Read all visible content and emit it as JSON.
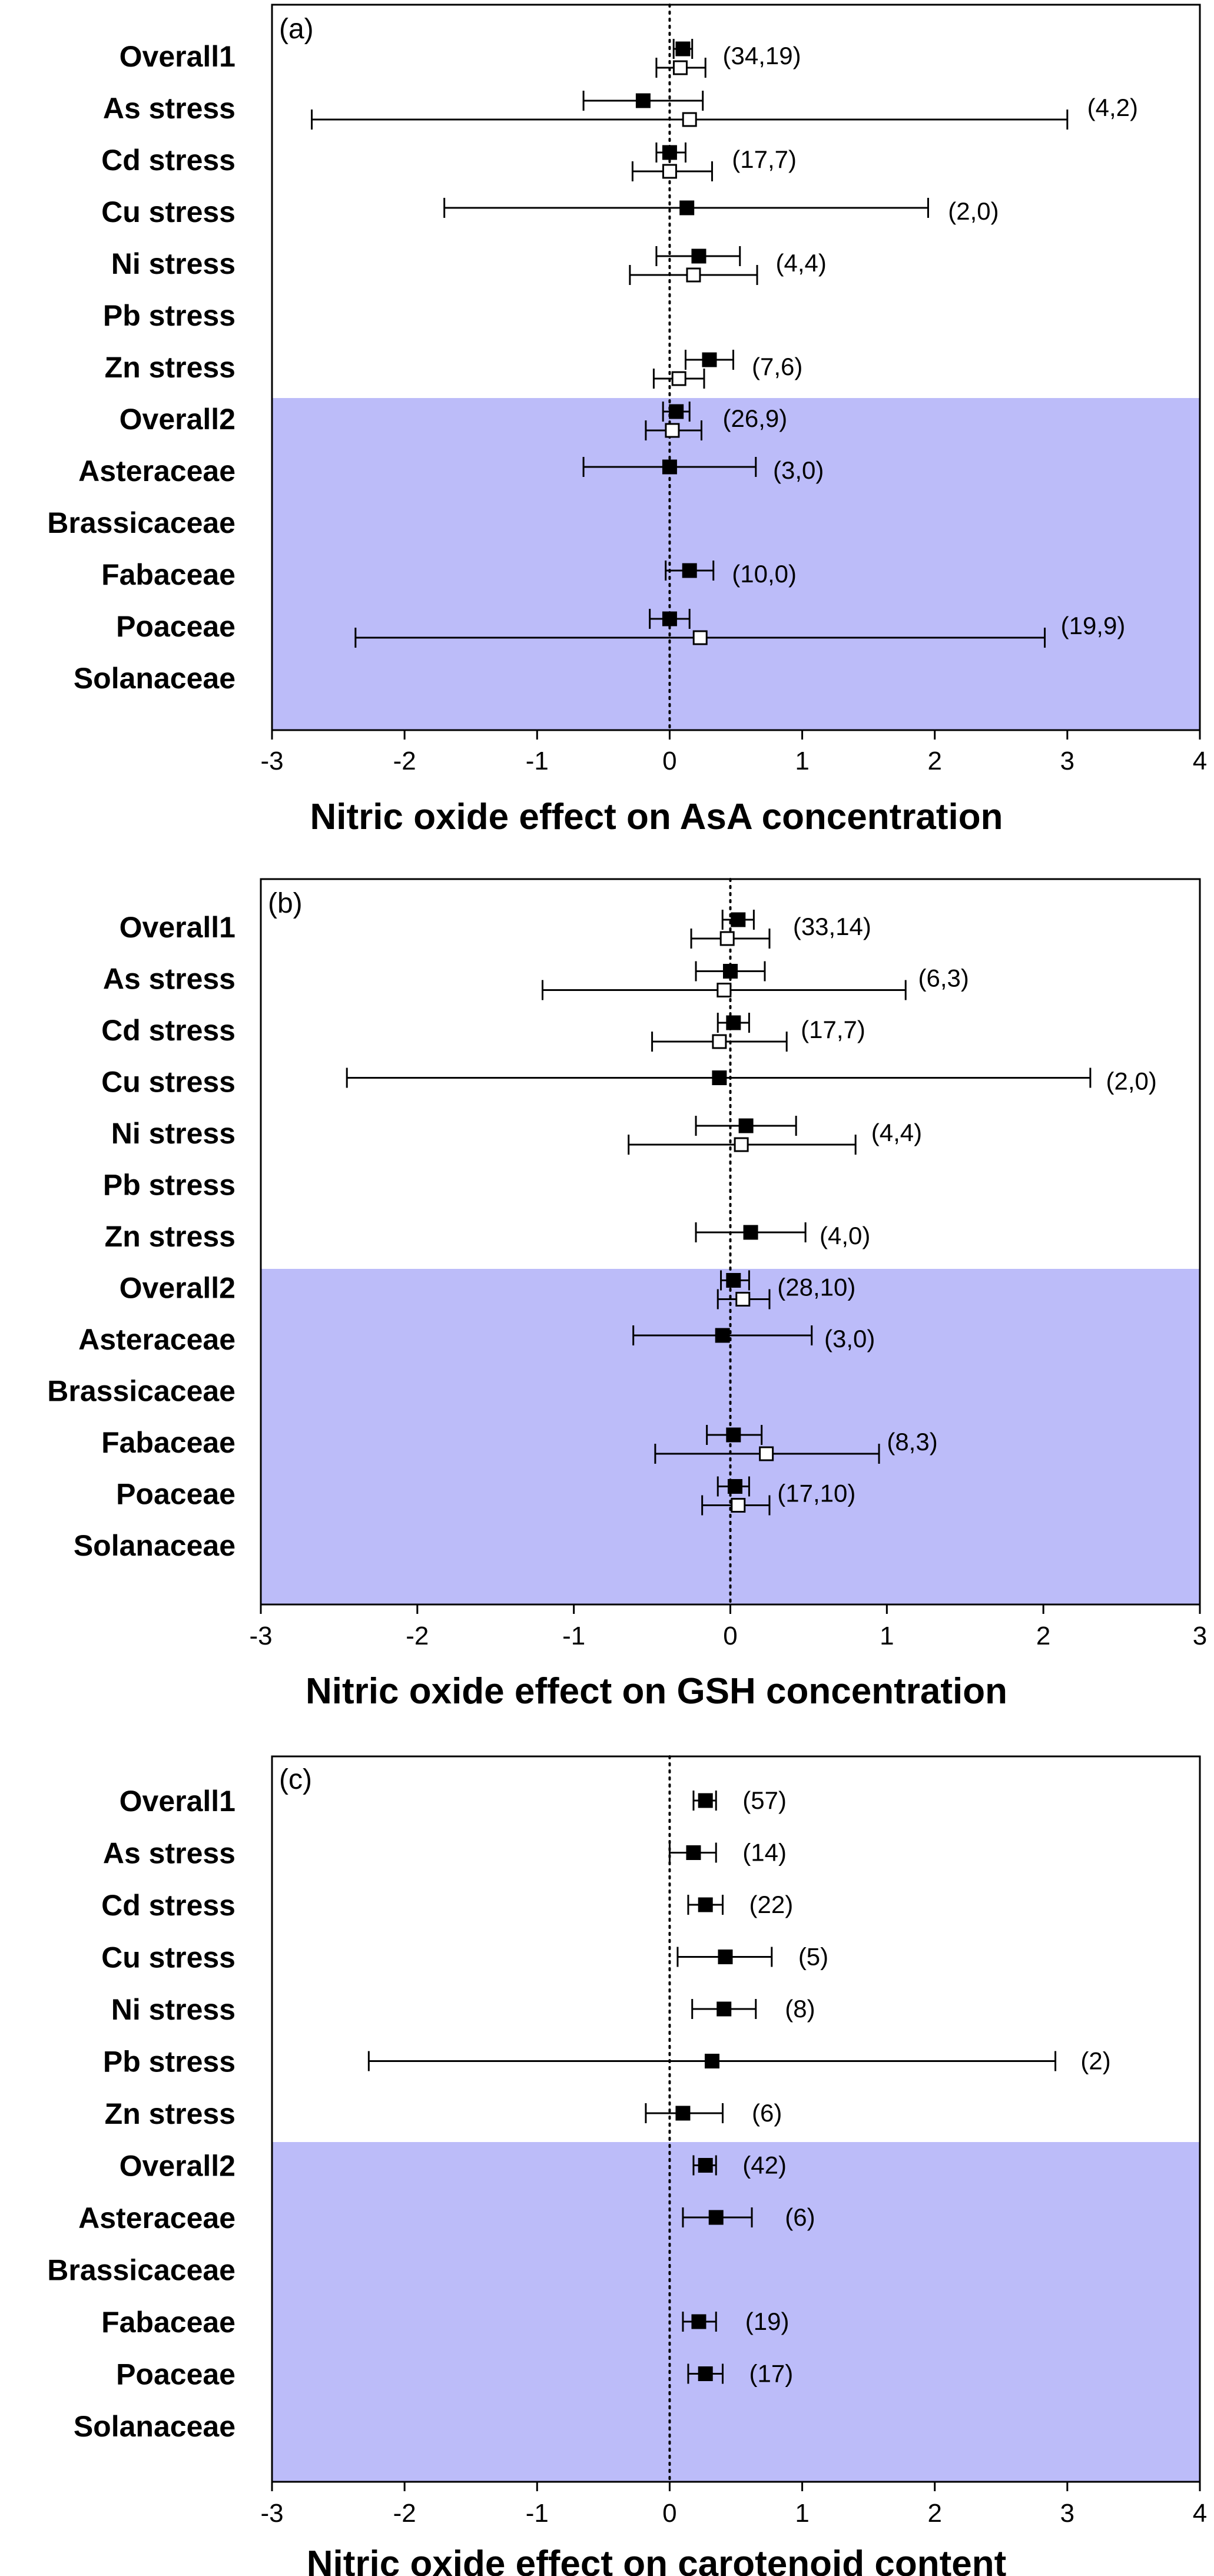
{
  "style": {
    "shade_color": "#bcbcf9",
    "ink_color": "#000000",
    "open_fill": "#ffffff"
  },
  "chart_data": [
    {
      "type": "forest",
      "panel_label": "(a)",
      "xlabel": "Nitric oxide effect on AsA concentration",
      "xlim": [
        -3,
        4
      ],
      "xticks": [
        -3,
        -2,
        -1,
        0,
        1,
        2,
        3,
        4
      ],
      "categories": [
        "Overall1",
        "As stress",
        "Cd stress",
        "Cu stress",
        "Ni stress",
        "Pb stress",
        "Zn stress",
        "Overall2",
        "Asteraceae",
        "Brassicaceae",
        "Fabaceae",
        "Poaceae",
        "Solanaceae"
      ],
      "shaded_from": "Overall2",
      "reference_line": 0,
      "series": [
        {
          "name": "filled",
          "marker": "filled-square",
          "points": [
            {
              "category": "Overall1",
              "mean": 0.1,
              "lower": 0.03,
              "upper": 0.17
            },
            {
              "category": "As stress",
              "mean": -0.2,
              "lower": -0.65,
              "upper": 0.25
            },
            {
              "category": "Cd stress",
              "mean": 0.0,
              "lower": -0.1,
              "upper": 0.12
            },
            {
              "category": "Cu stress",
              "mean": 0.13,
              "lower": -1.7,
              "upper": 1.95
            },
            {
              "category": "Ni stress",
              "mean": 0.22,
              "lower": -0.1,
              "upper": 0.53
            },
            {
              "category": "Zn stress",
              "mean": 0.3,
              "lower": 0.12,
              "upper": 0.48
            },
            {
              "category": "Overall2",
              "mean": 0.05,
              "lower": -0.05,
              "upper": 0.15
            },
            {
              "category": "Asteraceae",
              "mean": 0.0,
              "lower": -0.65,
              "upper": 0.65
            },
            {
              "category": "Fabaceae",
              "mean": 0.15,
              "lower": -0.03,
              "upper": 0.33
            },
            {
              "category": "Poaceae",
              "mean": 0.0,
              "lower": -0.15,
              "upper": 0.15
            }
          ]
        },
        {
          "name": "open",
          "marker": "open-square",
          "points": [
            {
              "category": "Overall1",
              "mean": 0.08,
              "lower": -0.1,
              "upper": 0.27
            },
            {
              "category": "As stress",
              "mean": 0.15,
              "lower": -2.7,
              "upper": 3.0
            },
            {
              "category": "Cd stress",
              "mean": 0.0,
              "lower": -0.28,
              "upper": 0.32
            },
            {
              "category": "Ni stress",
              "mean": 0.18,
              "lower": -0.3,
              "upper": 0.66
            },
            {
              "category": "Zn stress",
              "mean": 0.07,
              "lower": -0.12,
              "upper": 0.26
            },
            {
              "category": "Overall2",
              "mean": 0.02,
              "lower": -0.18,
              "upper": 0.24
            },
            {
              "category": "Poaceae",
              "mean": 0.23,
              "lower": -2.37,
              "upper": 2.83
            }
          ]
        }
      ],
      "annotations": [
        {
          "category": "Overall1",
          "text": "(34,19)",
          "x": 0.4
        },
        {
          "category": "As stress",
          "text": "(4,2)",
          "x": 3.15
        },
        {
          "category": "Cd stress",
          "text": "(17,7)",
          "x": 0.47
        },
        {
          "category": "Cu stress",
          "text": "(2,0)",
          "x": 2.1
        },
        {
          "category": "Ni stress",
          "text": "(4,4)",
          "x": 0.8
        },
        {
          "category": "Zn stress",
          "text": "(7,6)",
          "x": 0.62
        },
        {
          "category": "Overall2",
          "text": "(26,9)",
          "x": 0.4
        },
        {
          "category": "Asteraceae",
          "text": "(3,0)",
          "x": 0.78
        },
        {
          "category": "Fabaceae",
          "text": "(10,0)",
          "x": 0.47
        },
        {
          "category": "Poaceae",
          "text": "(19,9)",
          "x": 2.95
        }
      ]
    },
    {
      "type": "forest",
      "panel_label": "(b)",
      "xlabel": "Nitric oxide effect on GSH concentration",
      "xlim": [
        -3,
        3
      ],
      "xticks": [
        -3,
        -2,
        -1,
        0,
        1,
        2,
        3
      ],
      "categories": [
        "Overall1",
        "As stress",
        "Cd stress",
        "Cu stress",
        "Ni stress",
        "Pb stress",
        "Zn stress",
        "Overall2",
        "Asteraceae",
        "Brassicaceae",
        "Fabaceae",
        "Poaceae",
        "Solanaceae"
      ],
      "shaded_from": "Overall2",
      "reference_line": 0,
      "series": [
        {
          "name": "filled",
          "marker": "filled-square",
          "points": [
            {
              "category": "Overall1",
              "mean": 0.05,
              "lower": -0.05,
              "upper": 0.15
            },
            {
              "category": "As stress",
              "mean": 0.0,
              "lower": -0.22,
              "upper": 0.22
            },
            {
              "category": "Cd stress",
              "mean": 0.02,
              "lower": -0.08,
              "upper": 0.12
            },
            {
              "category": "Cu stress",
              "mean": -0.07,
              "lower": -2.45,
              "upper": 2.3
            },
            {
              "category": "Ni stress",
              "mean": 0.1,
              "lower": -0.22,
              "upper": 0.42
            },
            {
              "category": "Zn stress",
              "mean": 0.13,
              "lower": -0.22,
              "upper": 0.48
            },
            {
              "category": "Overall2",
              "mean": 0.02,
              "lower": -0.06,
              "upper": 0.12
            },
            {
              "category": "Asteraceae",
              "mean": -0.05,
              "lower": -0.62,
              "upper": 0.52
            },
            {
              "category": "Fabaceae",
              "mean": 0.02,
              "lower": -0.15,
              "upper": 0.2
            },
            {
              "category": "Poaceae",
              "mean": 0.03,
              "lower": -0.08,
              "upper": 0.12
            }
          ]
        },
        {
          "name": "open",
          "marker": "open-square",
          "points": [
            {
              "category": "Overall1",
              "mean": -0.02,
              "lower": -0.25,
              "upper": 0.25
            },
            {
              "category": "As stress",
              "mean": -0.04,
              "lower": -1.2,
              "upper": 1.12
            },
            {
              "category": "Cd stress",
              "mean": -0.07,
              "lower": -0.5,
              "upper": 0.36
            },
            {
              "category": "Ni stress",
              "mean": 0.07,
              "lower": -0.65,
              "upper": 0.8
            },
            {
              "category": "Overall2",
              "mean": 0.08,
              "lower": -0.08,
              "upper": 0.25
            },
            {
              "category": "Fabaceae",
              "mean": 0.23,
              "lower": -0.48,
              "upper": 0.95
            },
            {
              "category": "Poaceae",
              "mean": 0.05,
              "lower": -0.18,
              "upper": 0.25
            }
          ]
        }
      ],
      "annotations": [
        {
          "category": "Overall1",
          "text": "(33,14)",
          "x": 0.4
        },
        {
          "category": "As stress",
          "text": "(6,3)",
          "x": 1.2
        },
        {
          "category": "Cd stress",
          "text": "(17,7)",
          "x": 0.45
        },
        {
          "category": "Cu stress",
          "text": "(2,0)",
          "x": 2.4
        },
        {
          "category": "Ni stress",
          "text": "(4,4)",
          "x": 0.9
        },
        {
          "category": "Zn stress",
          "text": "(4,0)",
          "x": 0.57
        },
        {
          "category": "Overall2",
          "text": "(28,10)",
          "x": 0.3
        },
        {
          "category": "Asteraceae",
          "text": "(3,0)",
          "x": 0.6
        },
        {
          "category": "Fabaceae",
          "text": "(8,3)",
          "x": 1.0
        },
        {
          "category": "Poaceae",
          "text": "(17,10)",
          "x": 0.3
        }
      ]
    },
    {
      "type": "forest",
      "panel_label": "(c)",
      "xlabel": "Nitric oxide effect on carotenoid content",
      "xlim": [
        -3,
        4
      ],
      "xticks": [
        -3,
        -2,
        -1,
        0,
        1,
        2,
        3,
        4
      ],
      "categories": [
        "Overall1",
        "As stress",
        "Cd stress",
        "Cu stress",
        "Ni stress",
        "Pb stress",
        "Zn stress",
        "Overall2",
        "Asteraceae",
        "Brassicaceae",
        "Fabaceae",
        "Poaceae",
        "Solanaceae"
      ],
      "shaded_from": "Overall2",
      "reference_line": 0,
      "series": [
        {
          "name": "filled",
          "marker": "filled-square",
          "points": [
            {
              "category": "Overall1",
              "mean": 0.27,
              "lower": 0.18,
              "upper": 0.35
            },
            {
              "category": "As stress",
              "mean": 0.18,
              "lower": 0.0,
              "upper": 0.35
            },
            {
              "category": "Cd stress",
              "mean": 0.27,
              "lower": 0.14,
              "upper": 0.4
            },
            {
              "category": "Cu stress",
              "mean": 0.42,
              "lower": 0.06,
              "upper": 0.77
            },
            {
              "category": "Ni stress",
              "mean": 0.41,
              "lower": 0.17,
              "upper": 0.65
            },
            {
              "category": "Pb stress",
              "mean": 0.32,
              "lower": -2.27,
              "upper": 2.91
            },
            {
              "category": "Zn stress",
              "mean": 0.1,
              "lower": -0.18,
              "upper": 0.4
            },
            {
              "category": "Overall2",
              "mean": 0.27,
              "lower": 0.18,
              "upper": 0.35
            },
            {
              "category": "Asteraceae",
              "mean": 0.35,
              "lower": 0.1,
              "upper": 0.62
            },
            {
              "category": "Fabaceae",
              "mean": 0.22,
              "lower": 0.1,
              "upper": 0.35
            },
            {
              "category": "Poaceae",
              "mean": 0.27,
              "lower": 0.14,
              "upper": 0.4
            }
          ]
        }
      ],
      "annotations": [
        {
          "category": "Overall1",
          "text": "(57)",
          "x": 0.55
        },
        {
          "category": "As stress",
          "text": "(14)",
          "x": 0.55
        },
        {
          "category": "Cd stress",
          "text": "(22)",
          "x": 0.6
        },
        {
          "category": "Cu stress",
          "text": "(5)",
          "x": 0.97
        },
        {
          "category": "Ni stress",
          "text": "(8)",
          "x": 0.87
        },
        {
          "category": "Pb stress",
          "text": "(2)",
          "x": 3.1
        },
        {
          "category": "Zn stress",
          "text": "(6)",
          "x": 0.62
        },
        {
          "category": "Overall2",
          "text": "(42)",
          "x": 0.55
        },
        {
          "category": "Asteraceae",
          "text": "(6)",
          "x": 0.87
        },
        {
          "category": "Fabaceae",
          "text": "(19)",
          "x": 0.57
        },
        {
          "category": "Poaceae",
          "text": "(17)",
          "x": 0.6
        }
      ]
    }
  ]
}
